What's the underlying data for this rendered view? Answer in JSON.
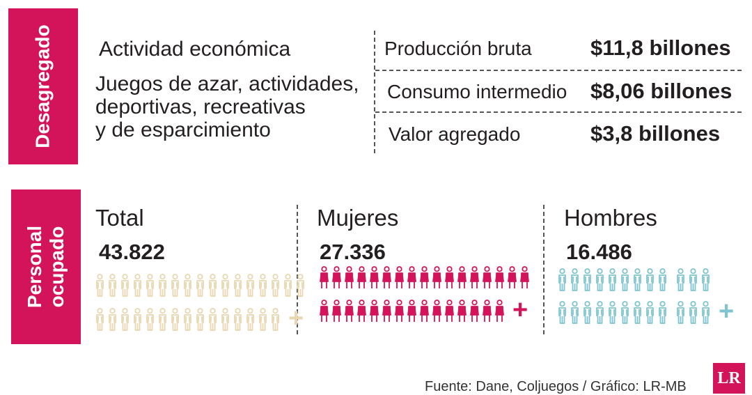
{
  "disaggregated": {
    "tab_label": "Desagregado",
    "activity_title": "Actividad económica",
    "activity_description": [
      "Juegos de azar, actividades,",
      "deportivas, recreativas",
      "y de esparcimiento"
    ],
    "metrics": [
      {
        "label": "Producción bruta",
        "value": "$11,8 billones"
      },
      {
        "label": "Consumo intermedio",
        "value": "$8,06 billones"
      },
      {
        "label": "Valor agregado",
        "value": "$3,8 billones"
      }
    ]
  },
  "employment": {
    "tab_label_line1": "Personal",
    "tab_label_line2": "ocupado",
    "groups": [
      {
        "label": "Total",
        "value": "43.822",
        "color": "#e8d7b0",
        "row1_count": 17,
        "row2_count": 15,
        "plus": "+"
      },
      {
        "label": "Mujeres",
        "value": "27.336",
        "color": "#d4145a",
        "row1_count": 17,
        "row2_count": 15,
        "plus": "+"
      },
      {
        "label": "Hombres",
        "value": "16.486",
        "color": "#7fc4cf",
        "row1_count": 12,
        "row2_count": 12,
        "plus": "+"
      }
    ]
  },
  "source": "Fuente: Dane, Coljuegos / Gráfico: LR-MB",
  "logo": "LR",
  "colors": {
    "accent": "#d4145a",
    "cream": "#e8d7b0",
    "teal": "#7fc4cf"
  }
}
